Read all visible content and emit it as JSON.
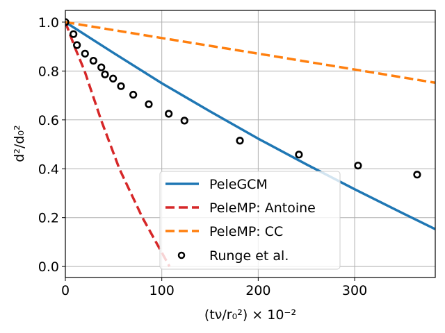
{
  "chart_data": {
    "type": "line",
    "title": "",
    "xlabel": "(tν/r₀²) × 10⁻²",
    "ylabel": "d²/d₀²",
    "xlim": [
      0,
      383.6
    ],
    "ylim": [
      -0.045,
      1.048
    ],
    "grid": true,
    "legend_position": "lower-center",
    "x_ticks": [
      0,
      100,
      200,
      300
    ],
    "x_tick_labels": [
      "0",
      "100",
      "200",
      "300"
    ],
    "y_ticks": [
      0.0,
      0.2,
      0.4,
      0.6,
      0.8,
      1.0
    ],
    "y_tick_labels": [
      "0.0",
      "0.2",
      "0.4",
      "0.6",
      "0.8",
      "1.0"
    ],
    "series": [
      {
        "name": "PeleGCM",
        "style": "solid",
        "color": "#1f77b4",
        "x": [
          0,
          50,
          100,
          150,
          200,
          250,
          300,
          350,
          383.6
        ],
        "y": [
          1.0,
          0.874,
          0.75,
          0.635,
          0.523,
          0.418,
          0.316,
          0.218,
          0.153
        ]
      },
      {
        "name": "PeleMP: Antoine",
        "style": "dashed",
        "color": "#d62728",
        "x": [
          0,
          10,
          20,
          37,
          56,
          80,
          108
        ],
        "y": [
          1.0,
          0.895,
          0.8,
          0.6,
          0.4,
          0.2,
          0.0
        ]
      },
      {
        "name": "PeleMP: CC",
        "style": "dashed",
        "color": "#ff7f0e",
        "x": [
          0,
          100,
          200,
          300,
          383.6
        ],
        "y": [
          1.0,
          0.935,
          0.871,
          0.806,
          0.752
        ]
      },
      {
        "name": "Runge et al.",
        "style": "markers",
        "marker": "open-circle",
        "color": "#000000",
        "x": [
          0,
          8.4,
          12.0,
          20.4,
          29.1,
          37.3,
          41.1,
          49.5,
          57.7,
          70.4,
          86.5,
          107.2,
          123.5,
          181.0,
          242.2,
          303.5,
          364.8
        ],
        "y": [
          1.0,
          0.951,
          0.906,
          0.871,
          0.842,
          0.815,
          0.786,
          0.769,
          0.738,
          0.703,
          0.664,
          0.625,
          0.597,
          0.515,
          0.458,
          0.413,
          0.376
        ]
      }
    ]
  }
}
